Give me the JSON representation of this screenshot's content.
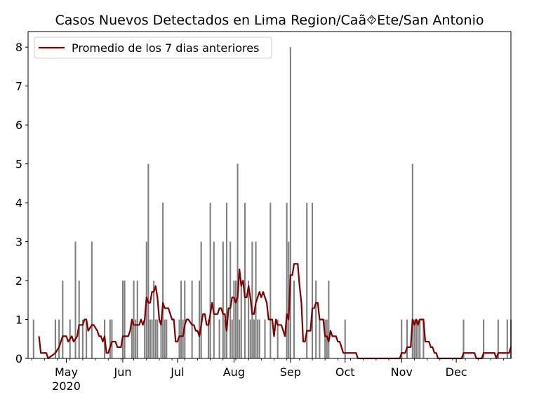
{
  "chart_data": {
    "type": "bar",
    "title": "Casos Nuevos Detectados en Lima Region/Caã⯑Ete/San Antonio",
    "xlabel": "",
    "ylabel": "",
    "ylim": [
      0,
      8.4
    ],
    "yticks": [
      "0",
      "1",
      "2",
      "3",
      "4",
      "5",
      "6",
      "7",
      "8"
    ],
    "xticks": [
      {
        "label": "May",
        "sub": "2020",
        "date": "2020-05-01"
      },
      {
        "label": "Jun",
        "sub": "",
        "date": "2020-06-01"
      },
      {
        "label": "Jul",
        "sub": "",
        "date": "2020-07-01"
      },
      {
        "label": "Aug",
        "sub": "",
        "date": "2020-08-01"
      },
      {
        "label": "Sep",
        "sub": "",
        "date": "2020-09-01"
      },
      {
        "label": "Oct",
        "sub": "",
        "date": "2020-10-01"
      },
      {
        "label": "Nov",
        "sub": "",
        "date": "2020-11-01"
      },
      {
        "label": "Dec",
        "sub": "",
        "date": "2020-12-01"
      }
    ],
    "x_range": [
      "2020-04-10",
      "2020-12-31"
    ],
    "grid": false,
    "legend_position": "upper-left",
    "bar_color": "#808080",
    "line_color": "#800000",
    "series": [
      {
        "name": "",
        "kind": "bar",
        "points": [
          [
            "2020-04-13",
            1
          ],
          [
            "2020-04-25",
            1
          ],
          [
            "2020-04-27",
            1
          ],
          [
            "2020-04-29",
            2
          ],
          [
            "2020-05-03",
            1
          ],
          [
            "2020-05-06",
            3
          ],
          [
            "2020-05-08",
            2
          ],
          [
            "2020-05-10",
            1
          ],
          [
            "2020-05-12",
            1
          ],
          [
            "2020-05-15",
            3
          ],
          [
            "2020-05-22",
            1
          ],
          [
            "2020-05-25",
            1
          ],
          [
            "2020-05-26",
            1
          ],
          [
            "2020-06-01",
            2
          ],
          [
            "2020-06-02",
            2
          ],
          [
            "2020-06-06",
            1
          ],
          [
            "2020-06-07",
            2
          ],
          [
            "2020-06-08",
            1
          ],
          [
            "2020-06-09",
            2
          ],
          [
            "2020-06-13",
            1
          ],
          [
            "2020-06-14",
            3
          ],
          [
            "2020-06-15",
            5
          ],
          [
            "2020-06-16",
            1
          ],
          [
            "2020-06-17",
            1
          ],
          [
            "2020-06-18",
            2
          ],
          [
            "2020-06-19",
            1
          ],
          [
            "2020-06-20",
            1
          ],
          [
            "2020-06-22",
            1
          ],
          [
            "2020-06-23",
            4
          ],
          [
            "2020-06-24",
            1
          ],
          [
            "2020-06-25",
            1
          ],
          [
            "2020-07-02",
            1
          ],
          [
            "2020-07-03",
            2
          ],
          [
            "2020-07-04",
            1
          ],
          [
            "2020-07-05",
            2
          ],
          [
            "2020-07-09",
            2
          ],
          [
            "2020-07-13",
            2
          ],
          [
            "2020-07-14",
            3
          ],
          [
            "2020-07-18",
            1
          ],
          [
            "2020-07-19",
            4
          ],
          [
            "2020-07-21",
            3
          ],
          [
            "2020-07-24",
            1
          ],
          [
            "2020-07-26",
            3
          ],
          [
            "2020-07-27",
            1
          ],
          [
            "2020-07-28",
            4
          ],
          [
            "2020-07-30",
            3
          ],
          [
            "2020-07-31",
            1
          ],
          [
            "2020-08-01",
            2
          ],
          [
            "2020-08-02",
            2
          ],
          [
            "2020-08-03",
            5
          ],
          [
            "2020-08-04",
            1
          ],
          [
            "2020-08-05",
            2
          ],
          [
            "2020-08-07",
            4
          ],
          [
            "2020-08-09",
            2
          ],
          [
            "2020-08-10",
            1
          ],
          [
            "2020-08-11",
            3
          ],
          [
            "2020-08-12",
            1
          ],
          [
            "2020-08-13",
            3
          ],
          [
            "2020-08-14",
            1
          ],
          [
            "2020-08-15",
            1
          ],
          [
            "2020-08-18",
            1
          ],
          [
            "2020-08-21",
            4
          ],
          [
            "2020-08-25",
            1
          ],
          [
            "2020-08-30",
            4
          ],
          [
            "2020-08-31",
            3
          ],
          [
            "2020-09-01",
            8
          ],
          [
            "2020-09-03",
            2
          ],
          [
            "2020-09-10",
            4
          ],
          [
            "2020-09-13",
            4
          ],
          [
            "2020-09-15",
            2
          ],
          [
            "2020-09-17",
            1
          ],
          [
            "2020-09-20",
            1
          ],
          [
            "2020-09-21",
            1
          ],
          [
            "2020-09-22",
            2
          ],
          [
            "2020-10-01",
            1
          ],
          [
            "2020-11-01",
            1
          ],
          [
            "2020-11-04",
            1
          ],
          [
            "2020-11-07",
            5
          ],
          [
            "2020-11-08",
            1
          ],
          [
            "2020-11-09",
            1
          ],
          [
            "2020-11-10",
            1
          ],
          [
            "2020-11-11",
            1
          ],
          [
            "2020-11-13",
            1
          ],
          [
            "2020-12-05",
            1
          ],
          [
            "2020-12-16",
            1
          ],
          [
            "2020-12-24",
            1
          ],
          [
            "2020-12-29",
            1
          ],
          [
            "2020-12-31",
            1
          ]
        ]
      },
      {
        "name": "Promedio de los 7 dias anteriores",
        "kind": "line",
        "points": [
          [
            "2020-04-16",
            0.57
          ],
          [
            "2020-04-17",
            0.14
          ],
          [
            "2020-04-20",
            0.14
          ],
          [
            "2020-04-21",
            0
          ],
          [
            "2020-04-25",
            0.14
          ],
          [
            "2020-04-27",
            0.29
          ],
          [
            "2020-04-29",
            0.57
          ],
          [
            "2020-05-01",
            0.57
          ],
          [
            "2020-05-02",
            0.43
          ],
          [
            "2020-05-04",
            0.57
          ],
          [
            "2020-05-05",
            0.43
          ],
          [
            "2020-05-07",
            0.57
          ],
          [
            "2020-05-08",
            0.86
          ],
          [
            "2020-05-10",
            0.86
          ],
          [
            "2020-05-11",
            1
          ],
          [
            "2020-05-12",
            1
          ],
          [
            "2020-05-13",
            0.71
          ],
          [
            "2020-05-15",
            0.86
          ],
          [
            "2020-05-16",
            0.86
          ],
          [
            "2020-05-18",
            0.71
          ],
          [
            "2020-05-19",
            0.57
          ],
          [
            "2020-05-20",
            0.57
          ],
          [
            "2020-05-21",
            0.43
          ],
          [
            "2020-05-22",
            0.57
          ],
          [
            "2020-05-23",
            0.14
          ],
          [
            "2020-05-24",
            0.14
          ],
          [
            "2020-05-26",
            0.43
          ],
          [
            "2020-05-28",
            0.43
          ],
          [
            "2020-05-29",
            0.29
          ],
          [
            "2020-05-31",
            0.29
          ],
          [
            "2020-06-01",
            0.57
          ],
          [
            "2020-06-04",
            0.57
          ],
          [
            "2020-06-05",
            0.71
          ],
          [
            "2020-06-06",
            1
          ],
          [
            "2020-06-07",
            0.86
          ],
          [
            "2020-06-10",
            0.86
          ],
          [
            "2020-06-11",
            1
          ],
          [
            "2020-06-12",
            0.86
          ],
          [
            "2020-06-13",
            1
          ],
          [
            "2020-06-14",
            1.57
          ],
          [
            "2020-06-15",
            1.43
          ],
          [
            "2020-06-16",
            1.43
          ],
          [
            "2020-06-17",
            1.71
          ],
          [
            "2020-06-18",
            1.71
          ],
          [
            "2020-06-19",
            1.86
          ],
          [
            "2020-06-20",
            1.57
          ],
          [
            "2020-06-21",
            1
          ],
          [
            "2020-06-22",
            0.86
          ],
          [
            "2020-06-23",
            1.43
          ],
          [
            "2020-06-24",
            1.29
          ],
          [
            "2020-06-26",
            1.29
          ],
          [
            "2020-06-28",
            1
          ],
          [
            "2020-06-29",
            1
          ],
          [
            "2020-06-30",
            0.43
          ],
          [
            "2020-07-01",
            0.43
          ],
          [
            "2020-07-02",
            0.57
          ],
          [
            "2020-07-04",
            0.57
          ],
          [
            "2020-07-05",
            0.86
          ],
          [
            "2020-07-06",
            1
          ],
          [
            "2020-07-07",
            1
          ],
          [
            "2020-07-09",
            0.86
          ],
          [
            "2020-07-10",
            0.86
          ],
          [
            "2020-07-11",
            0.71
          ],
          [
            "2020-07-12",
            0.71
          ],
          [
            "2020-07-13",
            0.57
          ],
          [
            "2020-07-14",
            0.86
          ],
          [
            "2020-07-15",
            1.14
          ],
          [
            "2020-07-16",
            1.14
          ],
          [
            "2020-07-17",
            0.86
          ],
          [
            "2020-07-18",
            0.86
          ],
          [
            "2020-07-19",
            1.14
          ],
          [
            "2020-07-20",
            1.43
          ],
          [
            "2020-07-21",
            1.14
          ],
          [
            "2020-07-22",
            1.14
          ],
          [
            "2020-07-23",
            1.14
          ],
          [
            "2020-07-24",
            1.29
          ],
          [
            "2020-07-25",
            1.29
          ],
          [
            "2020-07-26",
            1.14
          ],
          [
            "2020-07-27",
            1.14
          ],
          [
            "2020-07-28",
            0.71
          ],
          [
            "2020-07-29",
            1.29
          ],
          [
            "2020-07-30",
            1.29
          ],
          [
            "2020-07-31",
            1.57
          ],
          [
            "2020-08-01",
            1.57
          ],
          [
            "2020-08-02",
            1.43
          ],
          [
            "2020-08-03",
            1.57
          ],
          [
            "2020-08-04",
            2.29
          ],
          [
            "2020-08-05",
            1.86
          ],
          [
            "2020-08-06",
            2
          ],
          [
            "2020-08-07",
            1.57
          ],
          [
            "2020-08-08",
            1.57
          ],
          [
            "2020-08-09",
            1.86
          ],
          [
            "2020-08-10",
            1.57
          ],
          [
            "2020-08-11",
            1.14
          ],
          [
            "2020-08-12",
            1.14
          ],
          [
            "2020-08-13",
            1.43
          ],
          [
            "2020-08-14",
            1.57
          ],
          [
            "2020-08-15",
            1.71
          ],
          [
            "2020-08-16",
            1.57
          ],
          [
            "2020-08-17",
            1.71
          ],
          [
            "2020-08-18",
            1.57
          ],
          [
            "2020-08-19",
            1.43
          ],
          [
            "2020-08-20",
            1
          ],
          [
            "2020-08-22",
            1
          ],
          [
            "2020-08-23",
            0.57
          ],
          [
            "2020-08-24",
            1
          ],
          [
            "2020-08-25",
            0.86
          ],
          [
            "2020-08-26",
            0.86
          ],
          [
            "2020-08-27",
            0.86
          ],
          [
            "2020-08-29",
            0.57
          ],
          [
            "2020-08-30",
            1.14
          ],
          [
            "2020-08-31",
            1
          ],
          [
            "2020-09-01",
            2.14
          ],
          [
            "2020-09-02",
            2.14
          ],
          [
            "2020-09-03",
            2.43
          ],
          [
            "2020-09-05",
            2.43
          ],
          [
            "2020-09-06",
            1.86
          ],
          [
            "2020-09-07",
            1.43
          ],
          [
            "2020-09-08",
            0.43
          ],
          [
            "2020-09-09",
            0.43
          ],
          [
            "2020-09-10",
            0.71
          ],
          [
            "2020-09-12",
            0.71
          ],
          [
            "2020-09-13",
            1.29
          ],
          [
            "2020-09-14",
            1.29
          ],
          [
            "2020-09-15",
            1.43
          ],
          [
            "2020-09-16",
            1.43
          ],
          [
            "2020-09-17",
            1
          ],
          [
            "2020-09-19",
            1
          ],
          [
            "2020-09-20",
            0.57
          ],
          [
            "2020-09-21",
            0.57
          ],
          [
            "2020-09-22",
            0.43
          ],
          [
            "2020-09-23",
            0.71
          ],
          [
            "2020-09-24",
            0.57
          ],
          [
            "2020-09-26",
            0.57
          ],
          [
            "2020-09-27",
            0.43
          ],
          [
            "2020-09-28",
            0.43
          ],
          [
            "2020-09-29",
            0.29
          ],
          [
            "2020-09-30",
            0.14
          ],
          [
            "2020-10-01",
            0.14
          ],
          [
            "2020-10-07",
            0.14
          ],
          [
            "2020-10-08",
            0
          ],
          [
            "2020-10-31",
            0
          ],
          [
            "2020-11-01",
            0.14
          ],
          [
            "2020-11-03",
            0.14
          ],
          [
            "2020-11-04",
            0.29
          ],
          [
            "2020-11-06",
            0.29
          ],
          [
            "2020-11-07",
            1
          ],
          [
            "2020-11-08",
            0.86
          ],
          [
            "2020-11-09",
            1
          ],
          [
            "2020-11-10",
            0.86
          ],
          [
            "2020-11-11",
            1
          ],
          [
            "2020-11-13",
            1
          ],
          [
            "2020-11-14",
            0.43
          ],
          [
            "2020-11-16",
            0.43
          ],
          [
            "2020-11-17",
            0.29
          ],
          [
            "2020-11-18",
            0.29
          ],
          [
            "2020-11-19",
            0.14
          ],
          [
            "2020-11-20",
            0.14
          ],
          [
            "2020-11-21",
            0
          ],
          [
            "2020-12-04",
            0
          ],
          [
            "2020-12-05",
            0.14
          ],
          [
            "2020-12-11",
            0.14
          ],
          [
            "2020-12-12",
            0
          ],
          [
            "2020-12-15",
            0
          ],
          [
            "2020-12-16",
            0.14
          ],
          [
            "2020-12-22",
            0.14
          ],
          [
            "2020-12-23",
            0
          ],
          [
            "2020-12-24",
            0.14
          ],
          [
            "2020-12-28",
            0.14
          ],
          [
            "2020-12-29",
            0.14
          ],
          [
            "2020-12-30",
            0.14
          ],
          [
            "2020-12-31",
            0.29
          ]
        ]
      }
    ]
  }
}
